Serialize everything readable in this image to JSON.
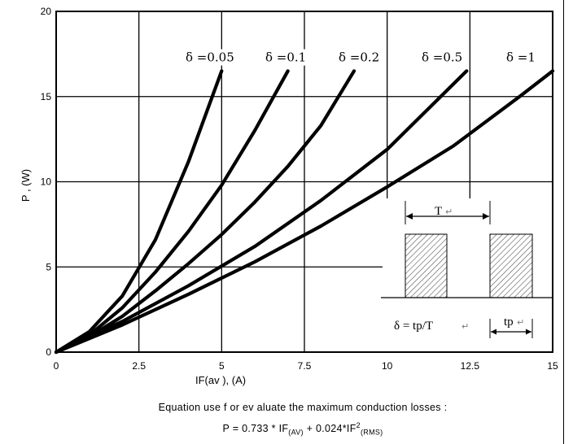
{
  "chart_data": {
    "type": "line",
    "title": "",
    "xlabel": "IF(av ), (A)",
    "ylabel": "P , (W)",
    "xlim": [
      0,
      15
    ],
    "ylim": [
      0,
      20
    ],
    "x_ticks": [
      "0",
      "2.5",
      "5",
      "7.5",
      "10",
      "12.5",
      "15"
    ],
    "y_ticks": [
      "0",
      "5",
      "10",
      "15",
      "20"
    ],
    "grid": true,
    "series": [
      {
        "name": "δ =0.05",
        "x": [
          0,
          1,
          2,
          3,
          4,
          5
        ],
        "y": [
          0,
          1.2,
          3.3,
          6.6,
          11.2,
          16.5
        ]
      },
      {
        "name": "δ =0.1",
        "x": [
          0,
          1,
          2,
          3,
          4,
          5,
          6,
          7
        ],
        "y": [
          0,
          1.0,
          2.6,
          4.7,
          7.1,
          9.8,
          13.0,
          16.5
        ]
      },
      {
        "name": "δ =0.2",
        "x": [
          0,
          1,
          2,
          3,
          4,
          5,
          6,
          7,
          8,
          9
        ],
        "y": [
          0,
          0.9,
          2.1,
          3.6,
          5.2,
          6.9,
          8.8,
          10.9,
          13.3,
          16.5
        ]
      },
      {
        "name": "δ =0.5",
        "x": [
          0,
          2,
          4,
          6,
          8,
          10,
          12.4
        ],
        "y": [
          0,
          1.8,
          3.9,
          6.2,
          8.9,
          11.9,
          16.5
        ]
      },
      {
        "name": "δ =1",
        "x": [
          0,
          2,
          4,
          6,
          8,
          10,
          12,
          14,
          15
        ],
        "y": [
          0,
          1.6,
          3.4,
          5.3,
          7.4,
          9.7,
          12.1,
          15.0,
          16.5
        ]
      }
    ],
    "inset": {
      "period_label": "T",
      "pulse_label": "tp",
      "formula": "δ = tp/T",
      "return_mark": "↵"
    }
  },
  "caption": {
    "line1": "Equation use f or ev aluate the maximum conduction losses :",
    "line2_prefix": "P = 0.733 * IF",
    "line2_sub1": "(AV)",
    "line2_mid": " + 0.024*IF",
    "line2_sup": "2",
    "line2_sub2": "(RMS)"
  }
}
